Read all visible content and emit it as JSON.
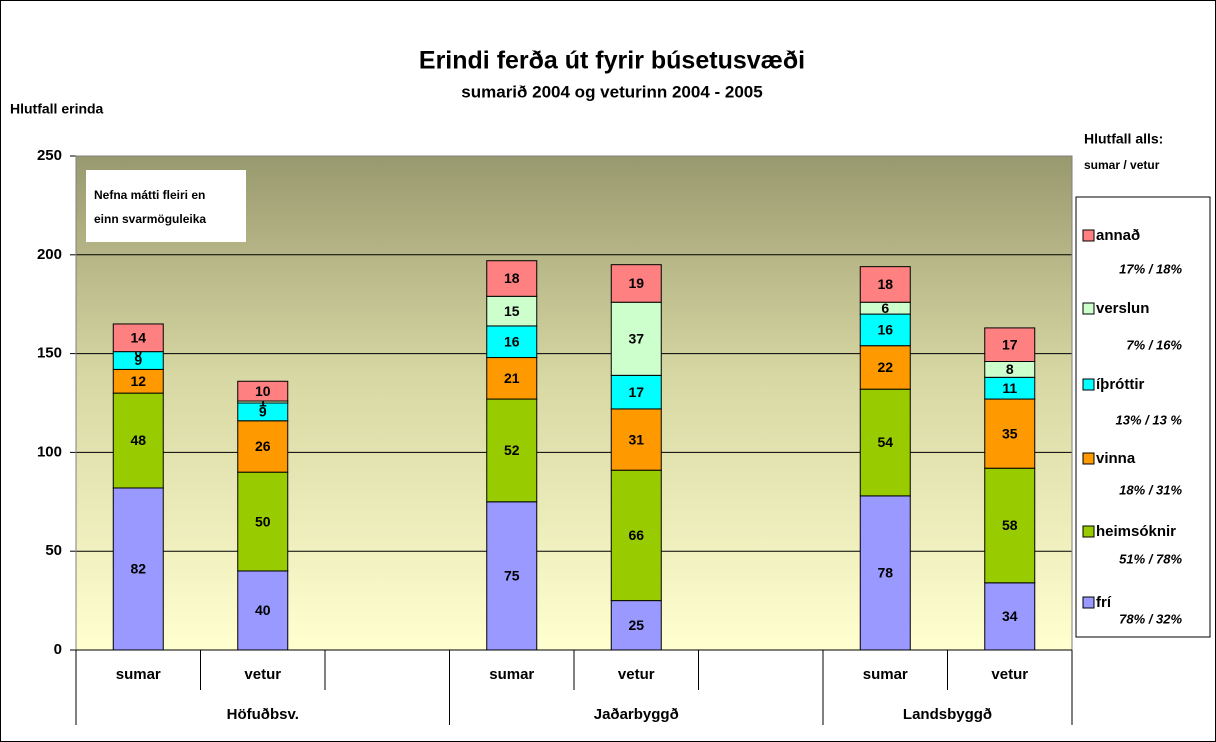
{
  "chart_data": {
    "type": "stacked_bar",
    "title": "Erindi ferða út fyrir búsetusvæði",
    "subtitle": "sumarið 2004 og veturinn 2004 - 2005",
    "y_label": "Hlutfall erinda",
    "annotation": [
      "Nefna mátti fleiri en",
      "einn svarmöguleika"
    ],
    "legend_title": [
      "Hlutfall alls:",
      "sumar / vetur"
    ],
    "legend_position": "right",
    "categories": [
      "sumar",
      "vetur",
      null,
      "sumar",
      "vetur",
      null,
      "sumar",
      "vetur"
    ],
    "group_labels": [
      "Höfuðbsv.",
      "Jaðarbyggð",
      "Landsbyggð"
    ],
    "ylim": [
      0,
      250
    ],
    "yticks": [
      0,
      50,
      100,
      150,
      200,
      250
    ],
    "grid": true,
    "series": [
      {
        "name": "frí",
        "color": "#9999ff",
        "note": "78% / 32%",
        "values": [
          82,
          40,
          null,
          75,
          25,
          null,
          78,
          34
        ]
      },
      {
        "name": "heimsóknir",
        "color": "#99cc00",
        "note": "51% / 78%",
        "values": [
          48,
          50,
          null,
          52,
          66,
          null,
          54,
          58
        ]
      },
      {
        "name": "vinna",
        "color": "#ff9900",
        "note": "18% / 31%",
        "values": [
          12,
          26,
          null,
          21,
          31,
          null,
          22,
          35
        ]
      },
      {
        "name": "íþróttir",
        "color": "#00ffff",
        "note": "13% / 13 %",
        "values": [
          9,
          9,
          null,
          16,
          17,
          null,
          16,
          11
        ]
      },
      {
        "name": "verslun",
        "color": "#ccffcc",
        "note": "7% / 16%",
        "values": [
          0,
          1,
          null,
          15,
          37,
          null,
          6,
          8
        ]
      },
      {
        "name": "annað",
        "color": "#ff8080",
        "note": "17% / 18%",
        "values": [
          14,
          10,
          null,
          18,
          19,
          null,
          18,
          17
        ]
      }
    ]
  }
}
